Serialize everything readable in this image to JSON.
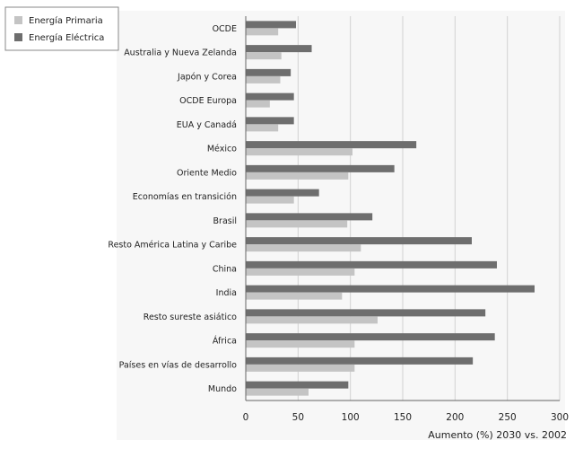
{
  "chart_data": {
    "type": "bar",
    "orientation": "horizontal",
    "title": "",
    "xlabel": "Aumento (%) 2030 vs. 2002",
    "ylabel": "",
    "xlim": [
      0,
      300
    ],
    "xticks": [
      0,
      50,
      100,
      150,
      200,
      250,
      300
    ],
    "grid": true,
    "legend_position": "top-left",
    "categories": [
      "OCDE",
      "Australia y Nueva Zelanda",
      "Japón y Corea",
      "OCDE Europa",
      "EUA y Canadá",
      "México",
      "Oriente Medio",
      "Economías en transición",
      "Brasil",
      "Resto América Latina y Caribe",
      "China",
      "India",
      "Resto sureste asiático",
      "África",
      "Países en vías de desarrollo",
      "Mundo"
    ],
    "series": [
      {
        "name": "Energía Eléctrica",
        "color": "#6e6e6e",
        "values": [
          48,
          63,
          43,
          46,
          46,
          163,
          142,
          70,
          121,
          216,
          240,
          276,
          229,
          238,
          217,
          98
        ]
      },
      {
        "name": "Energía Primaria",
        "color": "#c4c4c4",
        "values": [
          31,
          34,
          33,
          23,
          31,
          102,
          98,
          46,
          97,
          110,
          104,
          92,
          126,
          104,
          104,
          60
        ]
      }
    ]
  }
}
